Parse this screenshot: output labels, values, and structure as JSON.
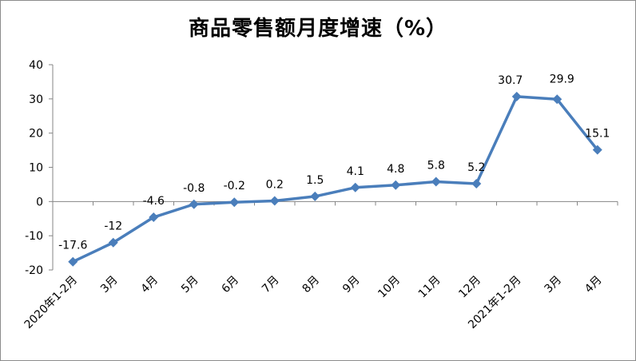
{
  "chart_data": {
    "type": "line",
    "title": "商品零售额月度增速（%）",
    "xlabel": "",
    "ylabel": "",
    "categories": [
      "2020年1-2月",
      "3月",
      "4月",
      "5月",
      "6月",
      "7月",
      "8月",
      "9月",
      "10月",
      "11月",
      "12月",
      "2021年1-2月",
      "3月",
      "4月"
    ],
    "series": [
      {
        "values": [
          -17.6,
          -12,
          -4.6,
          -0.8,
          -0.2,
          0.2,
          1.5,
          4.1,
          4.8,
          5.8,
          5.2,
          30.7,
          29.9,
          15.1
        ],
        "labels": [
          "-17.6",
          "-12",
          "-4.6",
          "-0.8",
          "-0.2",
          "0.2",
          "1.5",
          "4.1",
          "4.8",
          "5.8",
          "5.2",
          "30.7",
          "29.9",
          "15.1"
        ],
        "color": "#4a7ebb"
      }
    ],
    "ylim": [
      -20,
      40
    ],
    "yticks": [
      -20,
      -10,
      0,
      10,
      20,
      30,
      40
    ],
    "ytick_labels": [
      "-20",
      "-10",
      "0",
      "10",
      "20",
      "30",
      "40"
    ],
    "grid": false,
    "legend": "none",
    "marker": "diamond",
    "axis_color": "#868686"
  }
}
